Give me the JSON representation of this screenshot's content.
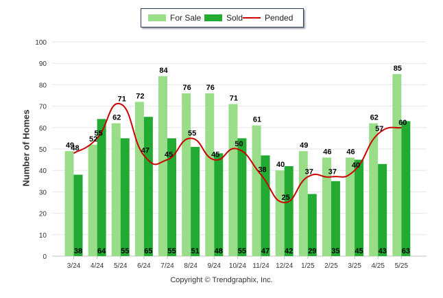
{
  "chart_data": {
    "type": "bar",
    "categories": [
      "3/24",
      "4/24",
      "5/24",
      "6/24",
      "7/24",
      "8/24",
      "9/24",
      "10/24",
      "11/24",
      "12/24",
      "1/25",
      "2/25",
      "3/25",
      "4/25",
      "5/25"
    ],
    "series": [
      {
        "name": "For Sale",
        "type": "bar",
        "color": "#99dd88",
        "values": [
          49,
          52,
          62,
          72,
          84,
          76,
          76,
          71,
          61,
          40,
          49,
          46,
          46,
          62,
          85
        ]
      },
      {
        "name": "Sold",
        "type": "bar",
        "color": "#22aa33",
        "values": [
          38,
          64,
          55,
          65,
          55,
          51,
          48,
          55,
          47,
          42,
          29,
          35,
          45,
          43,
          63
        ]
      },
      {
        "name": "Pended",
        "type": "line",
        "color": "#cc0000",
        "values": [
          48,
          55,
          71,
          47,
          45,
          55,
          45,
          50,
          38,
          25,
          37,
          37,
          40,
          57,
          60
        ]
      }
    ],
    "ylabel": "Number of Homes",
    "ylim": [
      0,
      100
    ],
    "yticks": [
      0,
      10,
      20,
      30,
      40,
      50,
      60,
      70,
      80,
      90,
      100
    ],
    "grid": true,
    "legend_position": "top-center"
  },
  "copyright": "Copyright © Trendgraphix, Inc."
}
